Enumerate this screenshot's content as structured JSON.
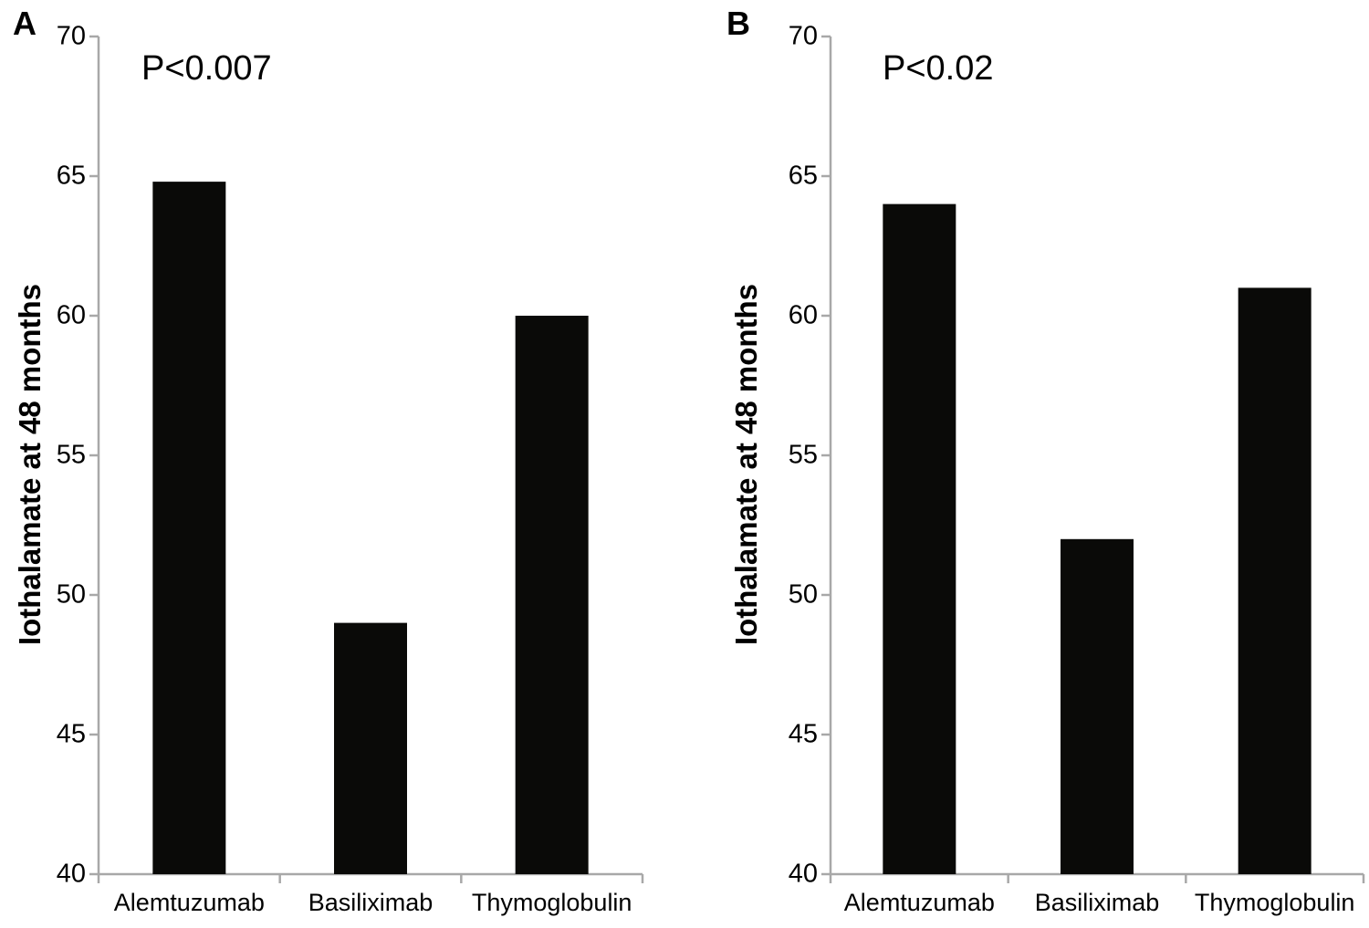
{
  "figure": {
    "background": "#ffffff",
    "bar_color": "#0a0a08",
    "axis_color": "#a8a8a8",
    "text_color": "#000000"
  },
  "chart_data": [
    {
      "type": "bar",
      "panel_label": "A",
      "annotation": "P<0.007",
      "title": "",
      "xlabel": "",
      "ylabel": "Iothalamate at 48 months",
      "categories": [
        "Alemtuzumab",
        "Basiliximab",
        "Thymoglobulin"
      ],
      "values": [
        64.8,
        49,
        60
      ],
      "ylim": [
        40,
        70
      ],
      "yticks": [
        40,
        45,
        50,
        55,
        60,
        65,
        70
      ],
      "grid": false,
      "legend": "none"
    },
    {
      "type": "bar",
      "panel_label": "B",
      "annotation": "P<0.02",
      "title": "",
      "xlabel": "",
      "ylabel": "Iothalamate at 48 months",
      "categories": [
        "Alemtuzumab",
        "Basiliximab",
        "Thymoglobulin"
      ],
      "values": [
        64,
        52,
        61
      ],
      "ylim": [
        40,
        70
      ],
      "yticks": [
        40,
        45,
        50,
        55,
        60,
        65,
        70
      ],
      "grid": false,
      "legend": "none"
    }
  ]
}
